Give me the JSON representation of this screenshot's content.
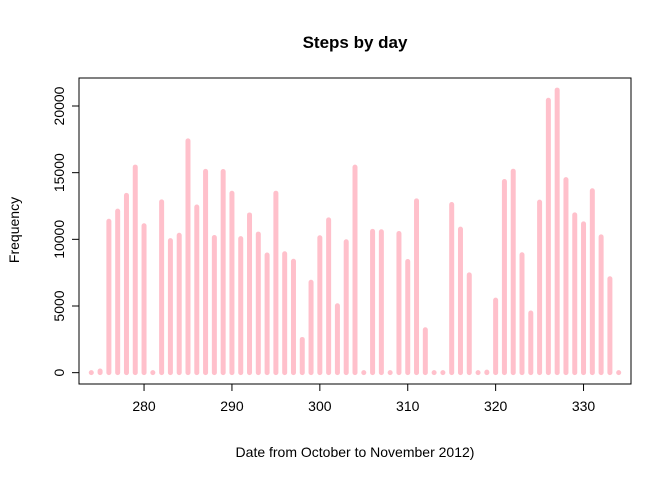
{
  "chart_data": {
    "type": "bar",
    "title": "Steps by day",
    "xlabel": "Date from October to November 2012)",
    "ylabel": "Frequency",
    "x": [
      274,
      275,
      276,
      277,
      278,
      279,
      280,
      281,
      282,
      283,
      284,
      285,
      286,
      287,
      288,
      289,
      290,
      291,
      292,
      293,
      294,
      295,
      296,
      297,
      298,
      299,
      300,
      301,
      302,
      303,
      304,
      305,
      306,
      307,
      308,
      309,
      310,
      311,
      312,
      313,
      314,
      315,
      316,
      317,
      318,
      319,
      320,
      321,
      322,
      323,
      324,
      325,
      326,
      327,
      328,
      329,
      330,
      331,
      332,
      333,
      334
    ],
    "values": [
      0,
      126,
      11352,
      12116,
      13294,
      15420,
      11015,
      0,
      12811,
      9900,
      10304,
      17382,
      12426,
      15098,
      10139,
      15084,
      13452,
      10056,
      11829,
      10395,
      8821,
      13460,
      8918,
      8355,
      2492,
      6778,
      10119,
      11458,
      5018,
      9819,
      15414,
      0,
      10600,
      10571,
      0,
      10439,
      8334,
      12883,
      3219,
      0,
      0,
      12608,
      10765,
      7336,
      0,
      41,
      5441,
      14339,
      15110,
      8841,
      4472,
      12787,
      20427,
      21194,
      14478,
      11834,
      11162,
      13646,
      10183,
      7047,
      0
    ],
    "xlim": [
      272.6,
      335.4
    ],
    "ylim": [
      -850,
      22100
    ],
    "x_ticks": [
      280,
      290,
      300,
      310,
      320,
      330
    ],
    "y_ticks": [
      0,
      5000,
      10000,
      15000,
      20000
    ],
    "bar_color": "#FFC0CB",
    "grid": false,
    "legend": "none"
  }
}
